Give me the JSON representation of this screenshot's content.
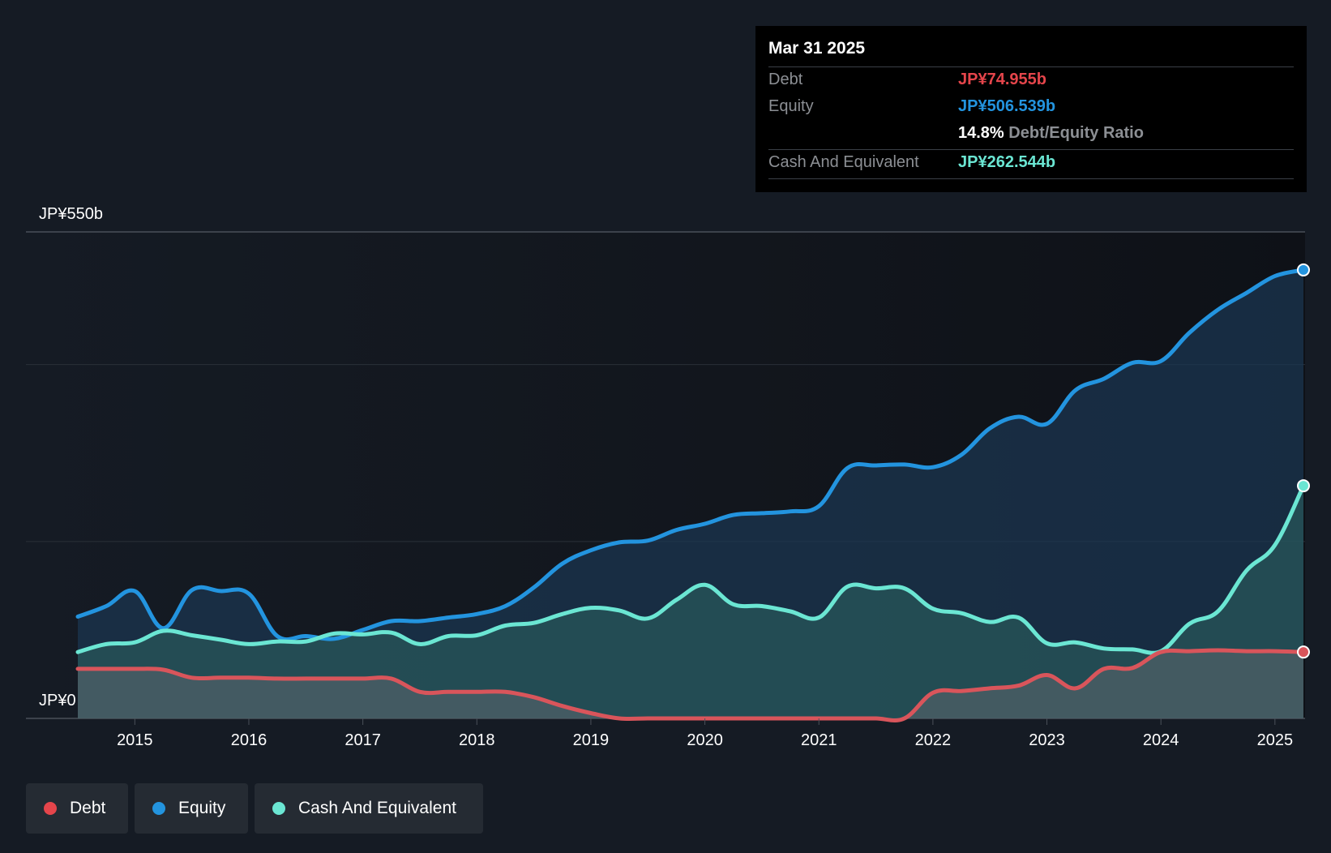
{
  "tooltip": {
    "date": "Mar 31 2025",
    "debt_label": "Debt",
    "debt_value": "JP¥74.955b",
    "equity_label": "Equity",
    "equity_value": "JP¥506.539b",
    "ratio_value": "14.8%",
    "ratio_label": "Debt/Equity Ratio",
    "cash_label": "Cash And Equivalent",
    "cash_value": "JP¥262.544b"
  },
  "legend": {
    "debt": "Debt",
    "equity": "Equity",
    "cash": "Cash And Equivalent"
  },
  "colors": {
    "debt": "#e5454b",
    "equity": "#2394df",
    "cash": "#6be6d3",
    "background": "#151b24"
  },
  "chart_data": {
    "type": "area",
    "title": "",
    "xlabel": "",
    "ylabel": "",
    "y_top_label": "JP¥550b",
    "y_bottom_label": "JP¥0",
    "ylim": [
      0,
      550
    ],
    "xlim": [
      2014.5,
      2025.25
    ],
    "x_ticks": [
      "2015",
      "2016",
      "2017",
      "2018",
      "2019",
      "2020",
      "2021",
      "2022",
      "2023",
      "2024",
      "2025"
    ],
    "series": [
      {
        "name": "Equity",
        "x": [
          2014.5,
          2014.75,
          2015.0,
          2015.25,
          2015.5,
          2015.75,
          2016.0,
          2016.25,
          2016.5,
          2016.75,
          2017.0,
          2017.25,
          2017.5,
          2017.75,
          2018.0,
          2018.25,
          2018.5,
          2018.75,
          2019.0,
          2019.25,
          2019.5,
          2019.75,
          2020.0,
          2020.25,
          2020.5,
          2020.75,
          2021.0,
          2021.25,
          2021.5,
          2021.75,
          2022.0,
          2022.25,
          2022.5,
          2022.75,
          2023.0,
          2023.25,
          2023.5,
          2023.75,
          2024.0,
          2024.25,
          2024.5,
          2024.75,
          2025.0,
          2025.25
        ],
        "values": [
          115,
          127,
          144,
          102,
          145,
          144,
          141,
          93,
          93,
          90,
          100,
          110,
          110,
          114,
          118,
          127,
          148,
          175,
          190,
          199,
          201,
          213,
          220,
          230,
          232,
          234,
          240,
          283,
          286,
          287,
          284,
          298,
          328,
          341,
          333,
          371,
          384,
          402,
          404,
          436,
          462,
          481,
          500,
          507
        ]
      },
      {
        "name": "Cash And Equivalent",
        "x": [
          2014.5,
          2014.75,
          2015.0,
          2015.25,
          2015.5,
          2015.75,
          2016.0,
          2016.25,
          2016.5,
          2016.75,
          2017.0,
          2017.25,
          2017.5,
          2017.75,
          2018.0,
          2018.25,
          2018.5,
          2018.75,
          2019.0,
          2019.25,
          2019.5,
          2019.75,
          2020.0,
          2020.25,
          2020.5,
          2020.75,
          2021.0,
          2021.25,
          2021.5,
          2021.75,
          2022.0,
          2022.25,
          2022.5,
          2022.75,
          2023.0,
          2023.25,
          2023.5,
          2023.75,
          2024.0,
          2024.25,
          2024.5,
          2024.75,
          2025.0,
          2025.25
        ],
        "values": [
          75,
          84,
          86,
          99,
          94,
          89,
          84,
          87,
          87,
          96,
          95,
          97,
          84,
          93,
          94,
          105,
          108,
          118,
          125,
          122,
          113,
          134,
          151,
          129,
          127,
          121,
          114,
          149,
          147,
          147,
          124,
          119,
          109,
          114,
          85,
          86,
          79,
          78,
          76,
          107,
          121,
          167,
          196,
          263
        ]
      },
      {
        "name": "Debt",
        "x": [
          2014.5,
          2014.75,
          2015.0,
          2015.25,
          2015.5,
          2015.75,
          2016.0,
          2016.25,
          2016.5,
          2016.75,
          2017.0,
          2017.25,
          2017.5,
          2017.75,
          2018.0,
          2018.25,
          2018.5,
          2018.75,
          2019.0,
          2019.25,
          2019.5,
          2019.75,
          2020.0,
          2020.25,
          2020.5,
          2020.75,
          2021.0,
          2021.25,
          2021.5,
          2021.75,
          2022.0,
          2022.25,
          2022.5,
          2022.75,
          2023.0,
          2023.25,
          2023.5,
          2023.75,
          2024.0,
          2024.25,
          2024.5,
          2024.75,
          2025.0,
          2025.25
        ],
        "values": [
          56,
          56,
          56,
          55,
          46,
          46,
          46,
          45,
          45,
          45,
          45,
          45,
          30,
          30,
          30,
          30,
          24,
          14,
          6,
          0,
          0,
          0,
          0,
          0,
          0,
          0,
          0,
          0,
          0,
          0,
          29,
          31,
          34,
          37,
          49,
          34,
          56,
          57,
          75,
          76,
          77,
          76,
          76,
          75
        ]
      }
    ]
  }
}
